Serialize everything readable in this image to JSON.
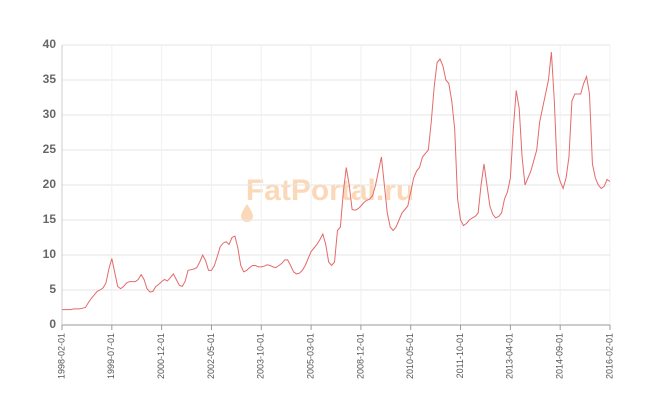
{
  "chart_data": {
    "type": "line",
    "watermark": "FatPortal.ru",
    "color": "#e46a6a",
    "grid": true,
    "ylim": [
      0,
      40
    ],
    "yticks": [
      0,
      5,
      10,
      15,
      20,
      25,
      30,
      35,
      40
    ],
    "categories": [
      "1998-02-01",
      null,
      null,
      null,
      null,
      null,
      null,
      null,
      null,
      null,
      null,
      null,
      null,
      null,
      null,
      null,
      null,
      "1999-07-01",
      null,
      null,
      null,
      null,
      null,
      null,
      null,
      null,
      null,
      null,
      null,
      null,
      null,
      null,
      null,
      null,
      "2000-12-01",
      null,
      null,
      null,
      null,
      null,
      null,
      null,
      null,
      null,
      null,
      null,
      null,
      null,
      null,
      null,
      null,
      "2002-05-01",
      null,
      null,
      null,
      null,
      null,
      null,
      null,
      null,
      null,
      null,
      null,
      null,
      null,
      null,
      null,
      null,
      "2003-10-01",
      null,
      null,
      null,
      null,
      null,
      null,
      null,
      null,
      null,
      null,
      null,
      null,
      null,
      null,
      null,
      null,
      "2005-03-01",
      null,
      null,
      null,
      null,
      null,
      null,
      null,
      null,
      null,
      null,
      null,
      null,
      null,
      null,
      null,
      null,
      "2008-12-01",
      null,
      null,
      null,
      null,
      null,
      null,
      null,
      null,
      null,
      null,
      null,
      null,
      null,
      null,
      null,
      null,
      "2010-05-01",
      null,
      null,
      null,
      null,
      null,
      null,
      null,
      null,
      null,
      null,
      null,
      null,
      null,
      null,
      null,
      null,
      "2011-10-01",
      null,
      null,
      null,
      null,
      null,
      null,
      null,
      null,
      null,
      null,
      null,
      null,
      null,
      null,
      null,
      null,
      "2013-04-01",
      null,
      null,
      null,
      null,
      null,
      null,
      null,
      null,
      null,
      null,
      null,
      null,
      null,
      null,
      null,
      null,
      "2014-09-01",
      null,
      null,
      null,
      null,
      null,
      null,
      null,
      null,
      null,
      null,
      null,
      null,
      null,
      null,
      null,
      null,
      "2016-02-01"
    ],
    "values": [
      2.2,
      2.2,
      2.2,
      2.2,
      2.3,
      2.3,
      2.3,
      2.4,
      2.5,
      3.2,
      3.8,
      4.3,
      4.8,
      5.0,
      5.3,
      6.0,
      8.0,
      9.5,
      7.5,
      5.5,
      5.2,
      5.5,
      6.0,
      6.2,
      6.2,
      6.2,
      6.5,
      7.2,
      6.5,
      5.2,
      4.7,
      4.8,
      5.5,
      5.8,
      6.2,
      6.5,
      6.3,
      6.8,
      7.3,
      6.5,
      5.7,
      5.5,
      6.2,
      7.8,
      7.9,
      8.0,
      8.2,
      9.0,
      10.0,
      9.2,
      7.8,
      7.8,
      8.5,
      9.8,
      11.2,
      11.7,
      11.9,
      11.5,
      12.5,
      12.7,
      11.0,
      8.5,
      7.6,
      7.8,
      8.2,
      8.5,
      8.5,
      8.3,
      8.3,
      8.4,
      8.6,
      8.5,
      8.3,
      8.2,
      8.5,
      8.8,
      9.3,
      9.3,
      8.5,
      7.6,
      7.3,
      7.4,
      7.8,
      8.5,
      9.5,
      10.5,
      11.0,
      11.5,
      12.2,
      13.0,
      11.5,
      9.0,
      8.5,
      9.0,
      13.5,
      14.0,
      19.0,
      22.5,
      20.0,
      16.5,
      16.4,
      16.6,
      17.0,
      17.5,
      17.8,
      18.0,
      18.5,
      20.0,
      22.0,
      24.0,
      20.0,
      16.0,
      14.0,
      13.5,
      14.0,
      15.0,
      16.0,
      16.5,
      17.0,
      19.0,
      21.0,
      22.0,
      22.5,
      24.0,
      24.5,
      25.0,
      29.0,
      34.0,
      37.5,
      38.0,
      37.0,
      35.0,
      34.5,
      32.0,
      28.0,
      18.0,
      15.0,
      14.2,
      14.5,
      15.0,
      15.3,
      15.5,
      16.0,
      20.0,
      23.0,
      20.0,
      17.0,
      15.8,
      15.3,
      15.5,
      16.0,
      18.0,
      19.0,
      21.0,
      28.0,
      33.5,
      31.0,
      24.0,
      20.0,
      21.0,
      22.0,
      23.5,
      25.0,
      29.0,
      31.0,
      33.0,
      35.0,
      39.0,
      32.0,
      22.0,
      20.5,
      19.5,
      21.0,
      24.0,
      32.0,
      33.0,
      33.0,
      33.0,
      34.5,
      35.5,
      33.0,
      23.0,
      21.0,
      20.0,
      19.5,
      19.8,
      20.8,
      20.5
    ]
  }
}
